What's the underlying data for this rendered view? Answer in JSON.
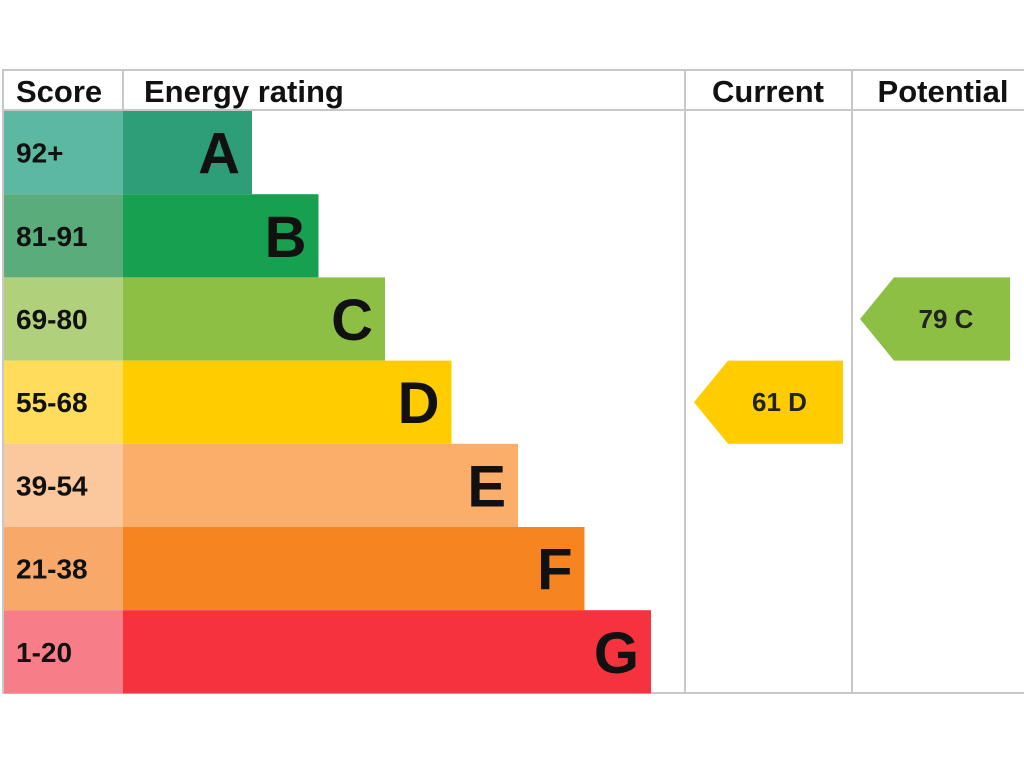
{
  "header": {
    "score": "Score",
    "energy_rating": "Energy rating",
    "current": "Current",
    "potential": "Potential"
  },
  "chart_data": {
    "type": "bar",
    "title": "",
    "xlabel": "",
    "ylabel": "",
    "bands": [
      {
        "letter": "A",
        "score_range": "92+",
        "color": "#2e9e78",
        "score_bg": "#5cb8a0"
      },
      {
        "letter": "B",
        "score_range": "81-91",
        "color": "#17a04f",
        "score_bg": "#5aad7a"
      },
      {
        "letter": "C",
        "score_range": "69-80",
        "color": "#8dbf45",
        "score_bg": "#b0d07c"
      },
      {
        "letter": "D",
        "score_range": "55-68",
        "color": "#ffcc00",
        "score_bg": "#ffdc5c"
      },
      {
        "letter": "E",
        "score_range": "39-54",
        "color": "#fbad6a",
        "score_bg": "#fbc79d"
      },
      {
        "letter": "F",
        "score_range": "21-38",
        "color": "#f68421",
        "score_bg": "#f8a969"
      },
      {
        "letter": "G",
        "score_range": "1-20",
        "color": "#f7323f",
        "score_bg": "#f77e88"
      }
    ],
    "current": {
      "score": 61,
      "band": "D",
      "label": "61  D",
      "color": "#ffcc00"
    },
    "potential": {
      "score": 79,
      "band": "C",
      "label": "79  C",
      "color": "#8dbf45"
    }
  }
}
